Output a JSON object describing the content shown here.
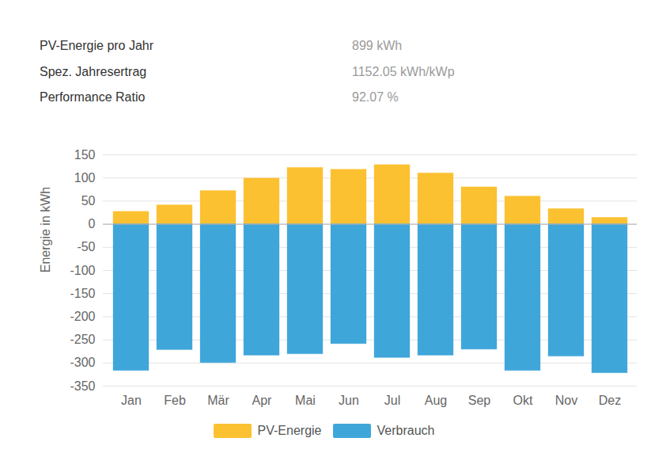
{
  "summary": [
    {
      "label": "PV-Energie pro Jahr",
      "value": "899 kWh"
    },
    {
      "label": "Spez. Jahresertrag",
      "value": "1152.05 kWh/kWp"
    },
    {
      "label": "Performance Ratio",
      "value": "92.07 %"
    }
  ],
  "chart_data": {
    "type": "bar",
    "y_label": "Energie in kWh",
    "categories": [
      "Jan",
      "Feb",
      "Mär",
      "Apr",
      "Mai",
      "Jun",
      "Jul",
      "Aug",
      "Sep",
      "Okt",
      "Nov",
      "Dez"
    ],
    "series": [
      {
        "name": "PV-Energie",
        "color": "#fcc131",
        "values": [
          27,
          41,
          72,
          99,
          122,
          118,
          128,
          110,
          80,
          60,
          33,
          14
        ]
      },
      {
        "name": "Verbrauch",
        "color": "#3fa6da",
        "values": [
          -317,
          -272,
          -300,
          -284,
          -281,
          -259,
          -289,
          -284,
          -271,
          -317,
          -286,
          -322
        ]
      }
    ],
    "ylim": [
      -350,
      150
    ],
    "yticks": [
      -350,
      -300,
      -250,
      -200,
      -150,
      -100,
      -50,
      0,
      50,
      100,
      150
    ],
    "grid": true,
    "stacked": true,
    "legend": "bottom"
  }
}
